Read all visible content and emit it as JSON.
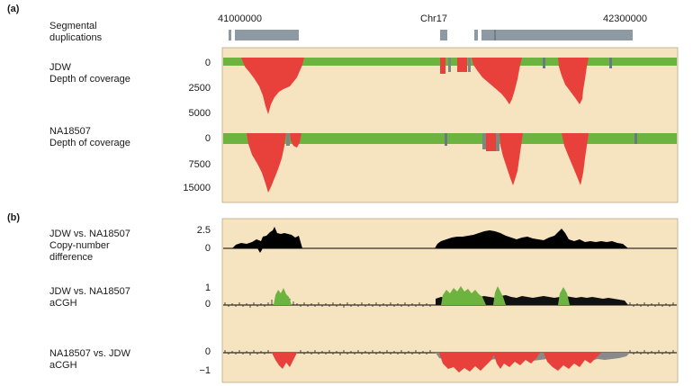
{
  "colors": {
    "background": "#f6e4c0",
    "coverage_normal": "#6db33f",
    "coverage_deleted": "#e8403a",
    "segdup_box": "#8e9aa3",
    "diff_fill": "#000000",
    "acgh_green": "#6db33f",
    "acgh_red": "#e8403a"
  },
  "panel_a": {
    "letter": "(a)",
    "segdup_label": "Segmental\nduplications",
    "coords": {
      "left": "41000000",
      "center": "Chr17",
      "right": "42300000"
    },
    "jdw_label": "JDW\nDepth of coverage",
    "jdw_ticks": [
      "0",
      "2500",
      "5000"
    ],
    "na_label": "NA18507\nDepth of coverage",
    "na_ticks": [
      "0",
      "7500",
      "15000"
    ]
  },
  "panel_b": {
    "letter": "(b)",
    "diff_label": "JDW vs. NA18507\nCopy-number\ndifference",
    "diff_ticks": [
      "2.5",
      "0"
    ],
    "acgh1_label": "JDW vs. NA18507\naCGH",
    "acgh1_ticks": [
      "1",
      "0"
    ],
    "acgh2_label": "NA18507 vs. JDW\naCGH",
    "acgh2_ticks": [
      "0",
      "−1"
    ]
  }
}
